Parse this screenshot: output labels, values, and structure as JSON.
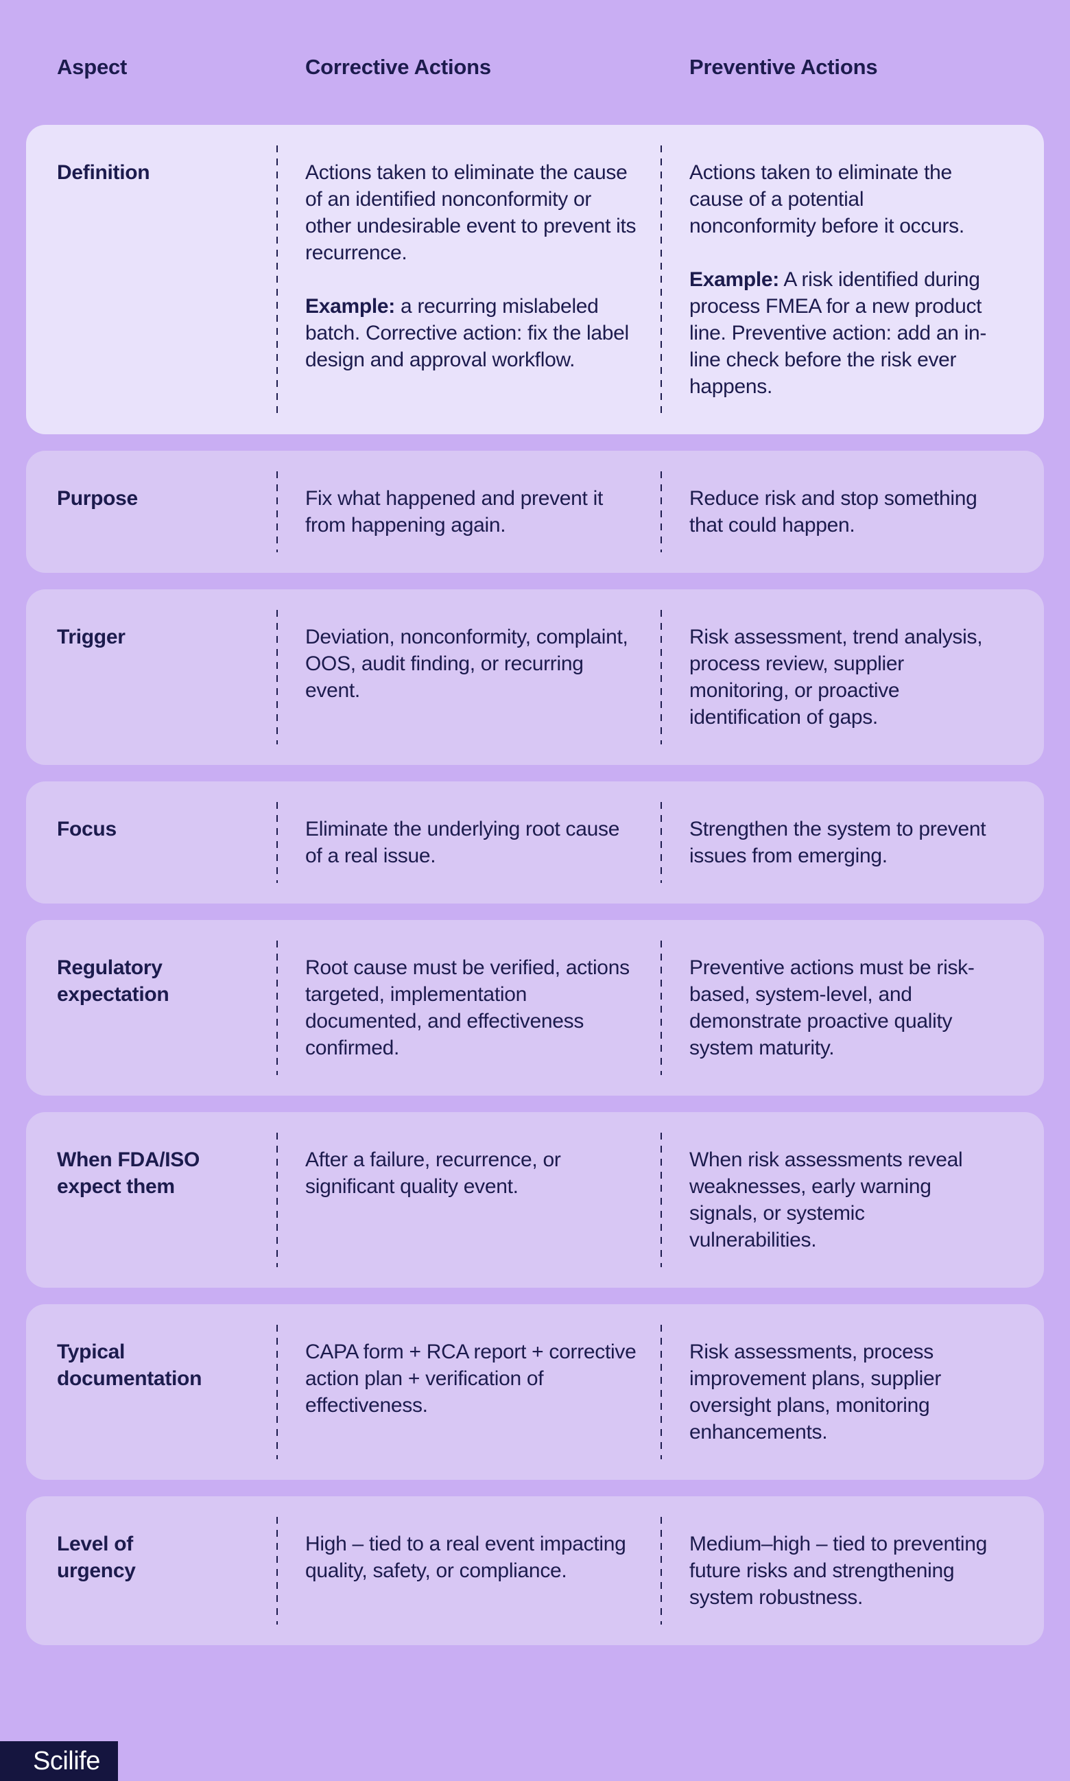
{
  "page": {
    "background": "#c9aef3",
    "card_color": "#d8c7f4",
    "highlight_card_color": "#e9e2fb",
    "text_color": "#1c1b4d",
    "logo_background": "#15153f"
  },
  "header": {
    "columns": [
      "Aspect",
      "Corrective Actions",
      "Preventive Actions"
    ]
  },
  "rows": [
    {
      "aspect": "Definition",
      "corrective_main": "Actions taken to eliminate the cause of an identified nonconformity or other undesirable event to prevent its recurrence.",
      "example_label": "Example:",
      "corrective_example": " a recurring mislabeled batch. Corrective action: fix the label design and approval workflow.",
      "preventive_main": "Actions taken to eliminate the cause of a potential nonconformity before it occurs.",
      "preventive_example": " A risk identified during process FMEA for a new product line. Preventive action: add an in-line check before the risk ever happens."
    },
    {
      "aspect": "Purpose",
      "corrective": "Fix what happened and prevent it from happening again.",
      "preventive": "Reduce risk and stop something that could happen."
    },
    {
      "aspect": "Trigger",
      "corrective": "Deviation, nonconformity, complaint, OOS, audit finding, or recurring event.",
      "preventive": "Risk assessment, trend analysis, process review, supplier monitoring, or proactive identification of gaps."
    },
    {
      "aspect": "Focus",
      "corrective": "Eliminate the underlying root cause of a real issue.",
      "preventive": "Strengthen the system to prevent issues from emerging."
    },
    {
      "aspect": "Regulatory expectation",
      "corrective": "Root cause must be verified, actions targeted, implementation documented, and effectiveness confirmed.",
      "preventive": "Preventive actions must be risk-based, system-level, and demonstrate proactive quality system maturity."
    },
    {
      "aspect": "When FDA/ISO expect them",
      "corrective": "After a failure, recurrence, or significant quality event.",
      "preventive": "When risk assessments reveal weaknesses, early warning signals, or systemic vulnerabilities."
    },
    {
      "aspect": "Typical documentation",
      "corrective": "CAPA form + RCA report + corrective action plan + verification of effectiveness.",
      "preventive": "Risk assessments, process improvement plans, supplier oversight plans, monitoring enhancements."
    },
    {
      "aspect": "Level of urgency",
      "corrective": "High – tied to a real event impacting quality, safety, or compliance.",
      "preventive": "Medium–high – tied to preventing future risks and strengthening system robustness."
    }
  ],
  "footer": {
    "logo_text": "Scilife"
  }
}
